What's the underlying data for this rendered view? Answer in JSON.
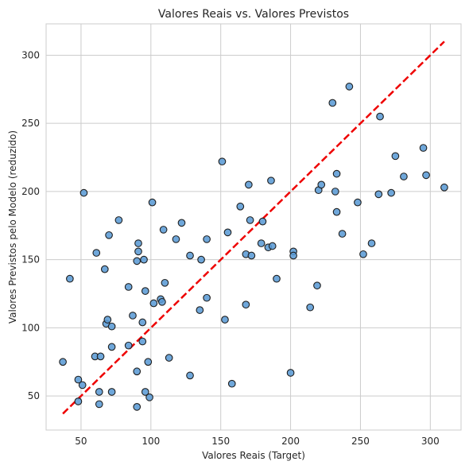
{
  "chart_data": {
    "type": "scatter",
    "title": "Valores Reais vs. Valores Previstos",
    "xlabel": "Valores Reais (Target)",
    "ylabel": "Valores Previstos pelo Modelo (reduzido)",
    "xlim": [
      25,
      322
    ],
    "ylim": [
      25,
      323
    ],
    "xticks": [
      50,
      100,
      150,
      200,
      250,
      300
    ],
    "yticks": [
      50,
      100,
      150,
      200,
      250,
      300
    ],
    "grid": true,
    "point_color": "#5b9bd5",
    "reference_line_color": "#ee0000",
    "reference_line": {
      "x": [
        37,
        310
      ],
      "y": [
        37,
        310
      ]
    },
    "points": [
      {
        "x": 37,
        "y": 75
      },
      {
        "x": 42,
        "y": 136
      },
      {
        "x": 48,
        "y": 62
      },
      {
        "x": 48,
        "y": 46
      },
      {
        "x": 51,
        "y": 58
      },
      {
        "x": 52,
        "y": 199
      },
      {
        "x": 60,
        "y": 79
      },
      {
        "x": 61,
        "y": 155
      },
      {
        "x": 63,
        "y": 53
      },
      {
        "x": 63,
        "y": 44
      },
      {
        "x": 64,
        "y": 79
      },
      {
        "x": 67,
        "y": 143
      },
      {
        "x": 68,
        "y": 103
      },
      {
        "x": 69,
        "y": 106
      },
      {
        "x": 70,
        "y": 168
      },
      {
        "x": 72,
        "y": 101
      },
      {
        "x": 72,
        "y": 86
      },
      {
        "x": 72,
        "y": 53
      },
      {
        "x": 77,
        "y": 179
      },
      {
        "x": 84,
        "y": 130
      },
      {
        "x": 84,
        "y": 87
      },
      {
        "x": 87,
        "y": 109
      },
      {
        "x": 90,
        "y": 68
      },
      {
        "x": 90,
        "y": 42
      },
      {
        "x": 90,
        "y": 149
      },
      {
        "x": 91,
        "y": 162
      },
      {
        "x": 91,
        "y": 156
      },
      {
        "x": 94,
        "y": 90
      },
      {
        "x": 94,
        "y": 104
      },
      {
        "x": 95,
        "y": 150
      },
      {
        "x": 96,
        "y": 127
      },
      {
        "x": 96,
        "y": 53
      },
      {
        "x": 98,
        "y": 75
      },
      {
        "x": 99,
        "y": 49
      },
      {
        "x": 101,
        "y": 192
      },
      {
        "x": 102,
        "y": 118
      },
      {
        "x": 107,
        "y": 121
      },
      {
        "x": 108,
        "y": 119
      },
      {
        "x": 109,
        "y": 172
      },
      {
        "x": 110,
        "y": 133
      },
      {
        "x": 113,
        "y": 78
      },
      {
        "x": 118,
        "y": 165
      },
      {
        "x": 122,
        "y": 177
      },
      {
        "x": 128,
        "y": 153
      },
      {
        "x": 128,
        "y": 65
      },
      {
        "x": 135,
        "y": 113
      },
      {
        "x": 136,
        "y": 150
      },
      {
        "x": 140,
        "y": 165
      },
      {
        "x": 140,
        "y": 122
      },
      {
        "x": 151,
        "y": 222
      },
      {
        "x": 153,
        "y": 106
      },
      {
        "x": 155,
        "y": 170
      },
      {
        "x": 158,
        "y": 59
      },
      {
        "x": 164,
        "y": 189
      },
      {
        "x": 168,
        "y": 154
      },
      {
        "x": 168,
        "y": 117
      },
      {
        "x": 170,
        "y": 205
      },
      {
        "x": 171,
        "y": 179
      },
      {
        "x": 172,
        "y": 153
      },
      {
        "x": 179,
        "y": 162
      },
      {
        "x": 180,
        "y": 178
      },
      {
        "x": 184,
        "y": 159
      },
      {
        "x": 186,
        "y": 208
      },
      {
        "x": 187,
        "y": 160
      },
      {
        "x": 190,
        "y": 136
      },
      {
        "x": 200,
        "y": 67
      },
      {
        "x": 202,
        "y": 156
      },
      {
        "x": 202,
        "y": 153
      },
      {
        "x": 214,
        "y": 115
      },
      {
        "x": 219,
        "y": 131
      },
      {
        "x": 220,
        "y": 201
      },
      {
        "x": 222,
        "y": 205
      },
      {
        "x": 230,
        "y": 265
      },
      {
        "x": 232,
        "y": 200
      },
      {
        "x": 233,
        "y": 185
      },
      {
        "x": 233,
        "y": 213
      },
      {
        "x": 237,
        "y": 169
      },
      {
        "x": 242,
        "y": 277
      },
      {
        "x": 248,
        "y": 192
      },
      {
        "x": 252,
        "y": 154
      },
      {
        "x": 258,
        "y": 162
      },
      {
        "x": 263,
        "y": 198
      },
      {
        "x": 264,
        "y": 255
      },
      {
        "x": 272,
        "y": 199
      },
      {
        "x": 275,
        "y": 226
      },
      {
        "x": 281,
        "y": 211
      },
      {
        "x": 295,
        "y": 232
      },
      {
        "x": 297,
        "y": 212
      },
      {
        "x": 310,
        "y": 203
      }
    ]
  }
}
